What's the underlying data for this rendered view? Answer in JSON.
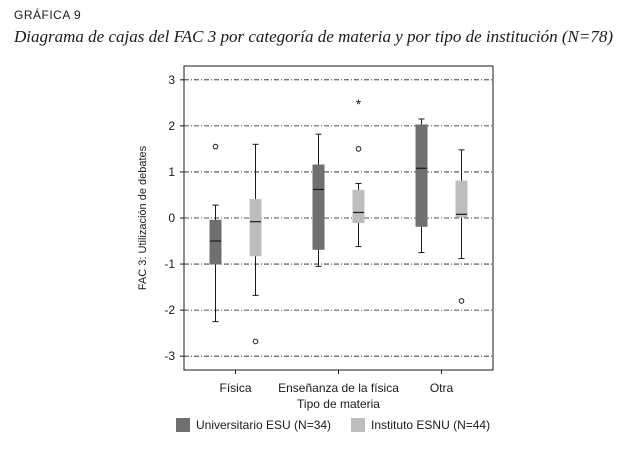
{
  "figure": {
    "label": "GRÁFICA 9",
    "title": "Diagrama de cajas del FAC 3 por categoría de materia y por tipo de institución (N=78)"
  },
  "chart_data": {
    "type": "boxplot",
    "xlabel": "Tipo de materia",
    "ylabel": "FAC 3: Utilización de debates",
    "ylim": [
      -3.3,
      3.3
    ],
    "yticks": [
      -3,
      -2,
      -1,
      0,
      1,
      2,
      3
    ],
    "grid": true,
    "legend_position": "bottom",
    "categories": [
      "Física",
      "Enseñanza de la física",
      "Otra"
    ],
    "series": [
      {
        "name": "Universitario ESU (N=34)",
        "color": "#707070",
        "boxes": [
          {
            "whisker_low": -2.25,
            "q1": -1.0,
            "median": -0.5,
            "q3": -0.05,
            "whisker_high": 0.28,
            "outliers": [
              1.55
            ],
            "extremes": []
          },
          {
            "whisker_low": -1.05,
            "q1": -0.68,
            "median": 0.62,
            "q3": 1.15,
            "whisker_high": 1.82,
            "outliers": [],
            "extremes": []
          },
          {
            "whisker_low": -0.75,
            "q1": -0.18,
            "median": 1.08,
            "q3": 2.02,
            "whisker_high": 2.15,
            "outliers": [],
            "extremes": []
          }
        ]
      },
      {
        "name": "Instituto ESNU (N=44)",
        "color": "#bdbdbd",
        "boxes": [
          {
            "whisker_low": -1.68,
            "q1": -0.82,
            "median": -0.08,
            "q3": 0.4,
            "whisker_high": 1.6,
            "outliers": [
              -2.68
            ],
            "extremes": []
          },
          {
            "whisker_low": -0.62,
            "q1": -0.1,
            "median": 0.12,
            "q3": 0.6,
            "whisker_high": 0.75,
            "outliers": [
              1.5
            ],
            "extremes": [
              2.5
            ]
          },
          {
            "whisker_low": -0.88,
            "q1": 0.02,
            "median": 0.08,
            "q3": 0.8,
            "whisker_high": 1.48,
            "outliers": [
              -1.8
            ],
            "extremes": []
          }
        ]
      }
    ]
  }
}
